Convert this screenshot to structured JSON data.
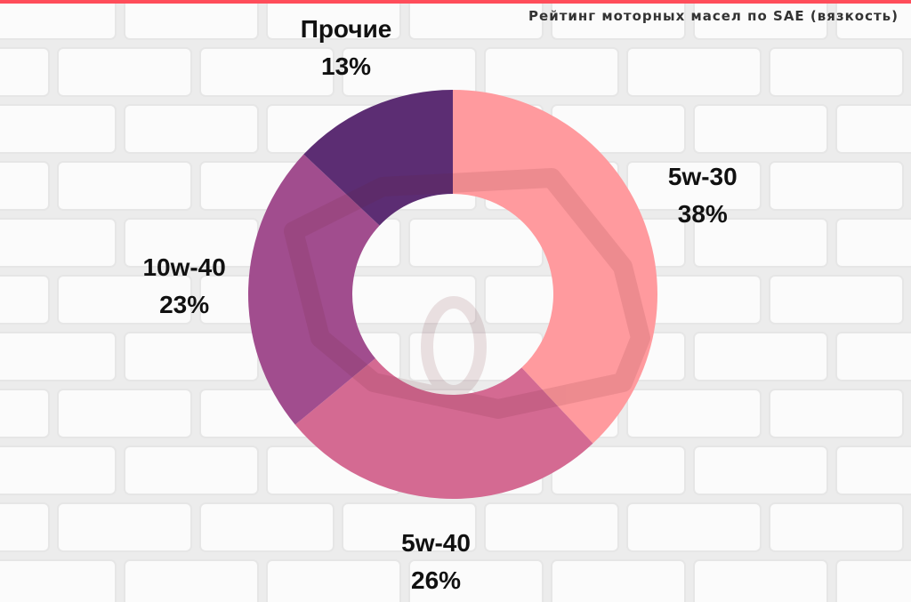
{
  "page": {
    "accent_color": "#ff4d5a",
    "background": "white brick wall",
    "watermark": "car-silhouette-icon"
  },
  "chart_data": {
    "type": "pie",
    "style": "donut",
    "title": "Рейтинг моторных масел по SAE (вязкость)",
    "start_angle_deg": 0,
    "direction": "clockwise",
    "slices": [
      {
        "name": "5w-30",
        "percent": 38,
        "label": "38%",
        "color": "#ff9a9e"
      },
      {
        "name": "5w-40",
        "percent": 26,
        "label": "26%",
        "color": "#d46a92"
      },
      {
        "name": "10w-40",
        "percent": 23,
        "label": "23%",
        "color": "#a14d8e"
      },
      {
        "name": "Прочие",
        "percent": 13,
        "label": "13%",
        "color": "#5c2d73"
      }
    ]
  }
}
